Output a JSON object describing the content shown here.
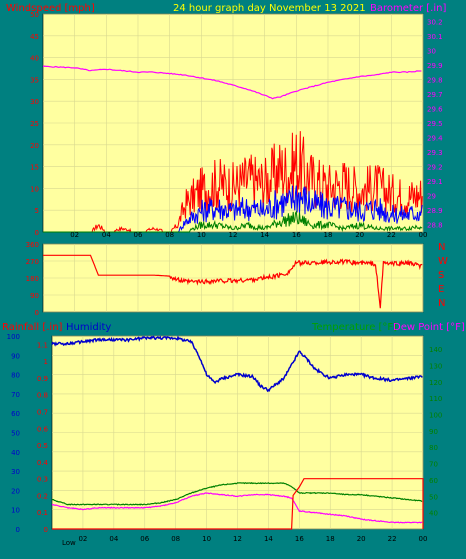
{
  "header": {
    "left_title": "Windspeed [mph]",
    "center_title": "24 hour graph day   November 13 2021",
    "right_title": "Barometer [.in]"
  },
  "lower_header": {
    "rainfall": "Rainfall [.in]",
    "humidity": "Humidity",
    "temperature": "Temperature [°F]",
    "dew_point": "Dew Point [°F]"
  },
  "footer": {
    "low_label": "Low"
  },
  "colors": {
    "background": "#008080",
    "plot_bg": "#FFFFA0",
    "grid": "#D8D890",
    "wind_max": "#FF0000",
    "wind_avg": "#0000FF",
    "wind_min": "#008000",
    "barometer": "#FF00FF",
    "direction": "#FF0000",
    "humidity": "#0000CC",
    "temperature": "#008000",
    "dew_point": "#FF00FF",
    "rainfall": "#FF0000"
  },
  "chart_data": [
    {
      "type": "line",
      "title": "Windspeed [mph]",
      "ylabel_left": "Windspeed [mph]",
      "ylabel_right": "Barometer [.in]",
      "x_ticks": [
        "02",
        "04",
        "06",
        "08",
        "10",
        "12",
        "14",
        "16",
        "18",
        "20",
        "22",
        "00"
      ],
      "y_left_ticks": [
        "0",
        "5",
        "10",
        "15",
        "20",
        "25",
        "30",
        "35",
        "40",
        "45",
        "50"
      ],
      "y_left_range": [
        0,
        50
      ],
      "y_right_ticks": [
        "28.8",
        "28.9",
        "29",
        "29.1",
        "29.2",
        "29.3",
        "29.4",
        "29.5",
        "29.6",
        "29.7",
        "29.8",
        "29.9",
        "30",
        "30.1",
        "30.2"
      ],
      "y_right_range": [
        28.75,
        30.25
      ],
      "x_range_hours": [
        0,
        24
      ],
      "series": [
        {
          "name": "Windspeed max",
          "axis": "left",
          "x": [
            0,
            3,
            3.5,
            4,
            5,
            6,
            7,
            8,
            8.5,
            9,
            10,
            11,
            12,
            13,
            14,
            15,
            15.5,
            16,
            17,
            18,
            19,
            20,
            21,
            22,
            23,
            24
          ],
          "values": [
            0,
            0,
            2,
            0,
            1,
            0,
            1,
            0,
            2,
            8,
            12,
            14,
            13,
            15,
            14,
            18,
            17,
            20,
            15,
            13,
            14,
            12,
            13,
            11,
            10,
            11
          ]
        },
        {
          "name": "Windspeed avg",
          "axis": "left",
          "x": [
            0,
            8.5,
            9,
            10,
            11,
            12,
            13,
            14,
            15,
            15.5,
            16,
            17,
            18,
            19,
            20,
            21,
            22,
            23,
            24
          ],
          "values": [
            0,
            0,
            3,
            6,
            7,
            6,
            7,
            6,
            9,
            8,
            11,
            8,
            7,
            7,
            6,
            7,
            5,
            5,
            6
          ]
        },
        {
          "name": "Windspeed min",
          "axis": "left",
          "x": [
            0,
            9,
            10,
            11,
            12,
            13,
            14,
            15,
            16,
            17,
            18,
            19,
            20,
            21,
            22,
            23,
            24
          ],
          "values": [
            0,
            0,
            2,
            2,
            1,
            2,
            1,
            3,
            4,
            2,
            2,
            1,
            2,
            1,
            1,
            1,
            2
          ]
        },
        {
          "name": "Barometer",
          "axis": "right",
          "x": [
            0,
            2,
            3,
            4,
            5,
            6,
            7,
            8,
            9,
            10,
            11,
            12,
            13,
            14,
            14.5,
            15,
            16,
            17,
            18,
            19,
            20,
            21,
            22,
            23,
            24
          ],
          "values": [
            29.89,
            29.88,
            29.86,
            29.87,
            29.86,
            29.85,
            29.85,
            29.84,
            29.83,
            29.81,
            29.79,
            29.76,
            29.73,
            29.69,
            29.67,
            29.68,
            29.72,
            29.75,
            29.78,
            29.8,
            29.82,
            29.83,
            29.85,
            29.85,
            29.86
          ]
        }
      ]
    },
    {
      "type": "line",
      "title": "Wind direction",
      "y_left_ticks": [
        "0",
        "90",
        "180",
        "270",
        "360"
      ],
      "y_left_range": [
        0,
        360
      ],
      "compass_labels": [
        "N",
        "W",
        "S",
        "E",
        "N"
      ],
      "x_range_hours": [
        0,
        24
      ],
      "series": [
        {
          "name": "Wind direction",
          "x": [
            0,
            0,
            3,
            3.5,
            7,
            8,
            8.5,
            9,
            10,
            11,
            12,
            13,
            14,
            15,
            15.5,
            16,
            17,
            18,
            19,
            20,
            21,
            21.3,
            21.5,
            22,
            23,
            24
          ],
          "values": [
            300,
            300,
            300,
            195,
            195,
            190,
            170,
            160,
            160,
            165,
            165,
            170,
            180,
            195,
            210,
            260,
            260,
            265,
            265,
            260,
            255,
            20,
            260,
            255,
            260,
            240
          ]
        }
      ]
    },
    {
      "type": "line",
      "title": "Humidity / Temperature / Dew Point / Rainfall",
      "x_ticks": [
        "02",
        "04",
        "06",
        "08",
        "10",
        "12",
        "14",
        "16",
        "18",
        "20",
        "22",
        "00"
      ],
      "y_left_ticks": [
        "0",
        "10",
        "20",
        "30",
        "40",
        "50",
        "60",
        "70",
        "80",
        "90",
        "100"
      ],
      "y_left_range": [
        0,
        100
      ],
      "y_rain_ticks": [
        "0",
        "0.1",
        "0.2",
        "0.3",
        "0.4",
        "0.5",
        "0.6",
        "0.7",
        "0.8",
        "0.9",
        "1",
        "1.1"
      ],
      "y_rain_range": [
        0,
        1.15
      ],
      "y_right_ticks": [
        "40",
        "50",
        "60",
        "70",
        "80",
        "90",
        "100",
        "110",
        "120",
        "130",
        "140"
      ],
      "y_right_range": [
        30,
        148
      ],
      "x_range_hours": [
        0,
        24
      ],
      "series": [
        {
          "name": "Humidity",
          "axis": "left",
          "x": [
            0,
            1,
            2,
            3,
            4,
            5,
            6,
            7,
            8,
            9,
            9.5,
            10,
            10.5,
            11,
            12,
            13,
            13.5,
            14,
            15,
            15.5,
            16,
            16.5,
            17,
            18,
            19,
            20,
            21,
            22,
            23,
            24
          ],
          "values": [
            96,
            96,
            97,
            98,
            98,
            98,
            99,
            99,
            99,
            97,
            90,
            80,
            76,
            78,
            80,
            79,
            74,
            72,
            78,
            85,
            92,
            88,
            83,
            78,
            80,
            80,
            78,
            77,
            78,
            79
          ]
        },
        {
          "name": "Temperature",
          "axis": "right",
          "x": [
            0,
            1,
            2,
            3,
            4,
            5,
            6,
            7,
            8,
            9,
            10,
            11,
            12,
            13,
            14,
            15,
            15.5,
            16,
            17,
            18,
            19,
            20,
            21,
            22,
            23,
            24
          ],
          "values": [
            48,
            45,
            45,
            45,
            45,
            45,
            45,
            46,
            48,
            52,
            55,
            57,
            58,
            58,
            58,
            58,
            56,
            52,
            52,
            52,
            51,
            51,
            50,
            49,
            48,
            47
          ]
        },
        {
          "name": "Dew Point",
          "axis": "right",
          "x": [
            0,
            1,
            2,
            3,
            4,
            5,
            6,
            7,
            8,
            9,
            10,
            11,
            12,
            13,
            14,
            15,
            15.5,
            16,
            17,
            18,
            19,
            20,
            21,
            22,
            23,
            24
          ],
          "values": [
            45,
            43,
            42,
            43,
            43,
            43,
            43,
            44,
            46,
            50,
            52,
            51,
            50,
            51,
            51,
            50,
            49,
            41,
            40,
            39,
            38,
            36,
            35,
            34,
            34,
            34
          ]
        },
        {
          "name": "Rainfall",
          "axis": "rain",
          "x": [
            0,
            10,
            10,
            15.5,
            15.6,
            16.0,
            16.3,
            24,
            24,
            24
          ],
          "values": [
            0,
            0,
            0,
            0,
            0.2,
            0.25,
            0.3,
            0.3,
            0.3,
            0
          ]
        }
      ]
    }
  ]
}
